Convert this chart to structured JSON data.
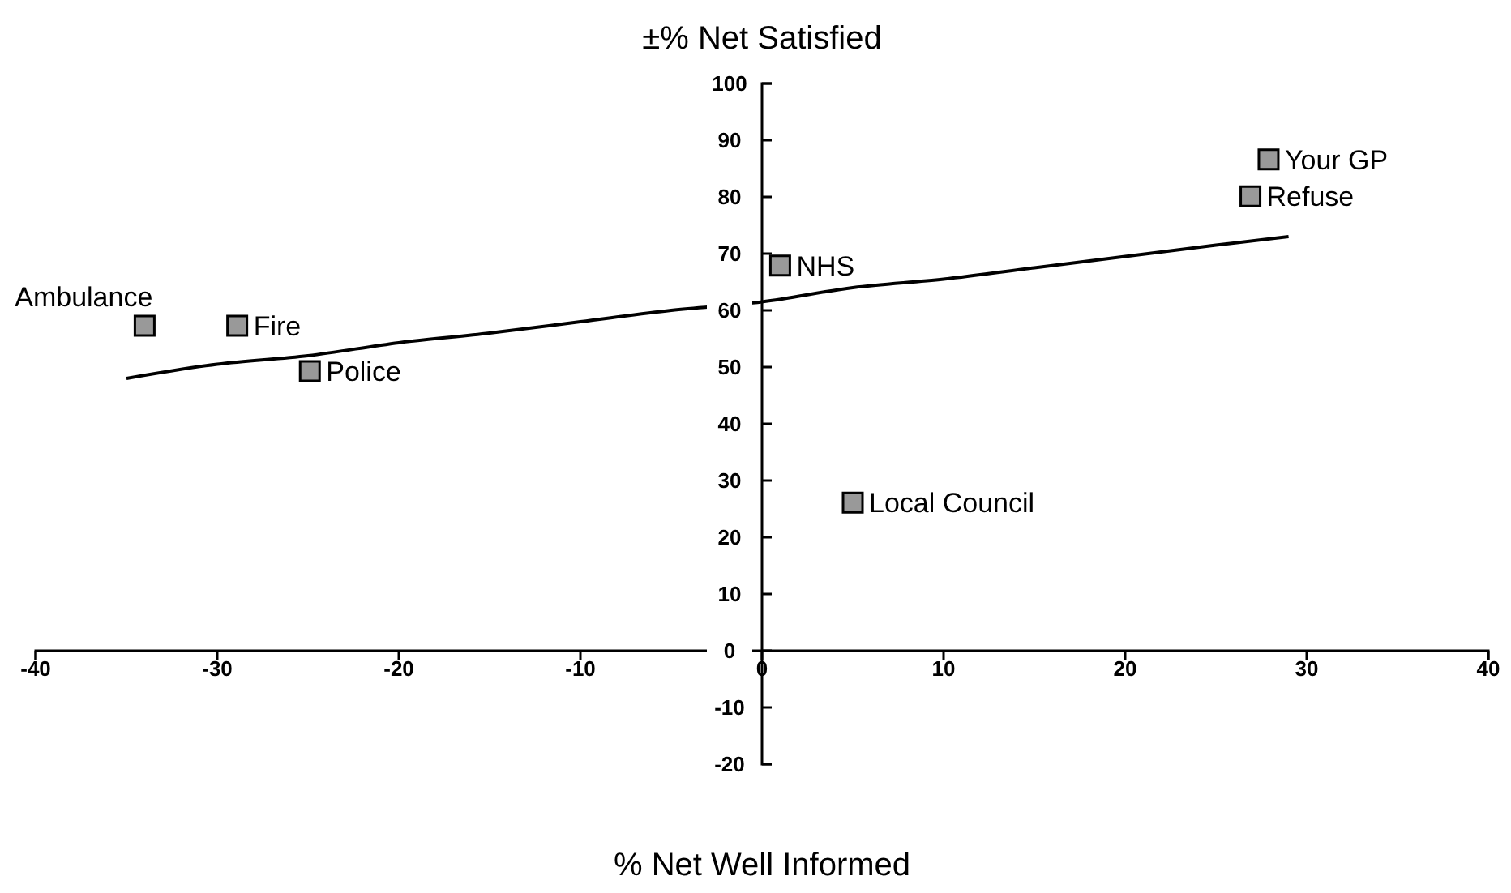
{
  "chart_data": {
    "type": "scatter",
    "xlabel": "% Net Well Informed",
    "ylabel": "±% Net Satisfied",
    "xlim": [
      -40,
      40
    ],
    "xticks": [
      -40,
      -30,
      -20,
      -10,
      0,
      10,
      20,
      30,
      40
    ],
    "ylim": [
      -20,
      100
    ],
    "yticks": [
      -20,
      -10,
      0,
      10,
      20,
      30,
      40,
      50,
      60,
      70,
      80,
      90,
      100
    ],
    "grid": false,
    "series": [
      {
        "marker": "square",
        "color": "#999999",
        "x": [
          -34,
          -28.9,
          -24.9,
          1,
          5,
          27.9,
          26.9
        ],
        "values": [
          57.3,
          57.3,
          49.3,
          67.9,
          26.1,
          86.6,
          80.1
        ]
      },
      {
        "type": "line",
        "marker": "none",
        "color": "#000000",
        "x": [
          -35,
          -30,
          -25,
          -20,
          -15,
          -10,
          -5,
          0,
          5,
          10,
          15,
          20,
          25,
          29
        ],
        "values": [
          48,
          50.5,
          52,
          54.3,
          56,
          58,
          60,
          61.5,
          64,
          65.5,
          67.5,
          69.5,
          71.5,
          73
        ]
      }
    ],
    "annotations": [
      {
        "text": "Ambulance",
        "x": -34,
        "y": 57.3
      },
      {
        "text": "Fire",
        "x": -28.9,
        "y": 57.3
      },
      {
        "text": "Police",
        "x": -24.9,
        "y": 49.3
      },
      {
        "text": "NHS",
        "x": 1,
        "y": 67.9
      },
      {
        "text": "Local Council",
        "x": 5,
        "y": 26.1
      },
      {
        "text": "Your GP",
        "x": 27.9,
        "y": 86.6
      },
      {
        "text": "Refuse",
        "x": 26.9,
        "y": 80.1
      }
    ]
  }
}
